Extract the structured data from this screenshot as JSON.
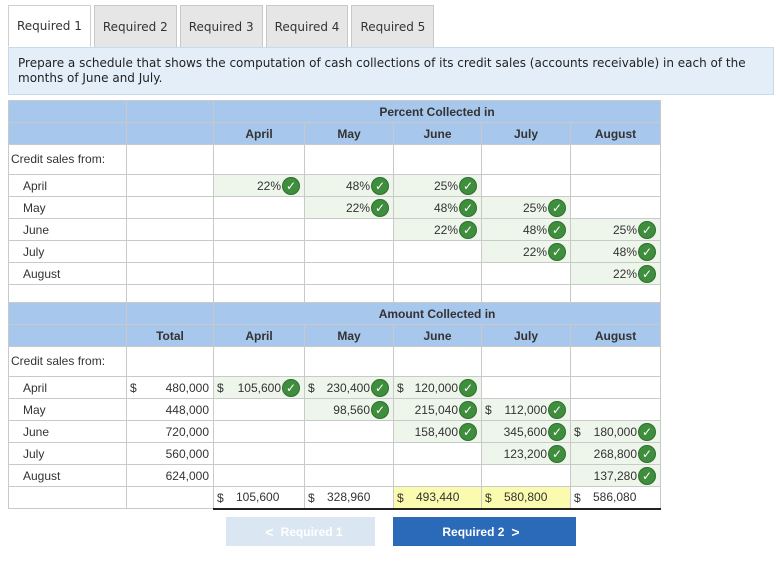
{
  "tabs": [
    "Required 1",
    "Required 2",
    "Required 3",
    "Required 4",
    "Required 5"
  ],
  "instructions": "Prepare a schedule that shows the computation of cash collections of its credit sales (accounts receivable) in each of the months of June and July.",
  "percent_table": {
    "group_title": "Percent Collected in",
    "columns": [
      "April",
      "May",
      "June",
      "July",
      "August"
    ],
    "row_header": "Credit sales from:",
    "rows": [
      {
        "label": "April",
        "cells": [
          "22%",
          "48%",
          "25%",
          "",
          ""
        ]
      },
      {
        "label": "May",
        "cells": [
          "",
          "22%",
          "48%",
          "25%",
          ""
        ]
      },
      {
        "label": "June",
        "cells": [
          "",
          "",
          "22%",
          "48%",
          "25%"
        ]
      },
      {
        "label": "July",
        "cells": [
          "",
          "",
          "",
          "22%",
          "48%"
        ]
      },
      {
        "label": "August",
        "cells": [
          "",
          "",
          "",
          "",
          "22%"
        ]
      }
    ]
  },
  "amount_table": {
    "group_title": "Amount Collected in",
    "total_header": "Total",
    "columns": [
      "April",
      "May",
      "June",
      "July",
      "August"
    ],
    "row_header": "Credit sales from:",
    "rows": [
      {
        "label": "April",
        "total": "480,000",
        "cells": [
          "105,600",
          "230,400",
          "120,000",
          "",
          ""
        ]
      },
      {
        "label": "May",
        "total": "448,000",
        "cells": [
          "",
          "98,560",
          "215,040",
          "112,000",
          ""
        ]
      },
      {
        "label": "June",
        "total": "720,000",
        "cells": [
          "",
          "",
          "158,400",
          "345,600",
          "180,000"
        ]
      },
      {
        "label": "July",
        "total": "560,000",
        "cells": [
          "",
          "",
          "",
          "123,200",
          "268,800"
        ]
      },
      {
        "label": "August",
        "total": "624,000",
        "cells": [
          "",
          "",
          "",
          "",
          "137,280"
        ]
      }
    ],
    "totals": [
      "105,600",
      "328,960",
      "493,440",
      "580,800",
      "586,080"
    ],
    "currency_symbol": "$"
  },
  "nav": {
    "prev_label": "Required 1",
    "next_label": "Required 2",
    "prev_arrow": "<",
    "next_arrow": ">"
  },
  "colors": {
    "header_blue": "#a7c7ec",
    "check_green": "#3e8e3e",
    "highlight_yellow": "#fbfbb0",
    "next_button": "#2a6ab8"
  }
}
